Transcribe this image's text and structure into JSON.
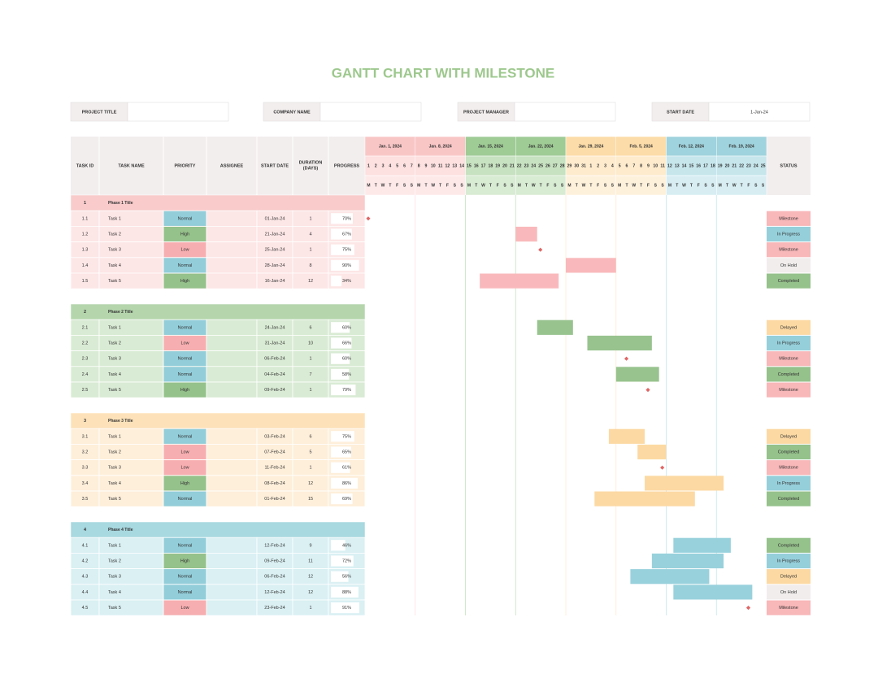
{
  "title": "GANTT CHART WITH MILESTONE",
  "info": [
    {
      "label": "PROJECT TITLE"
    },
    {
      "label": "COMPANY NAME"
    },
    {
      "label": "PROJECT MANAGER"
    },
    {
      "label": "START DATE",
      "value": "1-Jan-24"
    }
  ],
  "columns": [
    "TASK ID",
    "TASK NAME",
    "PRIORITY",
    "ASSIGNEE",
    "START DATE",
    "DURATION (DAYS)",
    "PROGRESS"
  ],
  "status_header": "STATUS",
  "timeline": {
    "weeks": [
      "Jan. 1, 2024",
      "Jan. 8, 2024",
      "Jan. 15, 2024",
      "Jan. 22, 2024",
      "Jan. 29, 2024",
      "Feb. 5, 2024",
      "Feb. 12, 2024",
      "Feb. 19, 2024"
    ],
    "week_colors": [
      "#f9c6c6",
      "#f9c6c6",
      "#9fcb95",
      "#9fcb95",
      "#fcdca8",
      "#fcdca8",
      "#9fd3dd",
      "#9fd3dd"
    ],
    "day_colors": [
      "#fde0e0",
      "#fde0e0",
      "#c7e2c0",
      "#c7e2c0",
      "#feebcd",
      "#feebcd",
      "#c6e6ec",
      "#c6e6ec"
    ],
    "days": [
      1,
      2,
      3,
      4,
      5,
      6,
      7,
      8,
      9,
      10,
      11,
      12,
      13,
      14,
      15,
      16,
      17,
      18,
      19,
      20,
      21,
      22,
      23,
      24,
      25,
      26,
      27,
      28,
      29,
      30,
      31,
      1,
      2,
      3,
      4,
      5,
      6,
      7,
      8,
      9,
      10,
      11,
      12,
      13,
      14,
      15,
      16,
      17,
      18,
      19,
      20,
      21,
      22,
      23,
      24,
      25
    ],
    "weekdays": [
      "M",
      "T",
      "W",
      "T",
      "F",
      "S",
      "S"
    ]
  },
  "priority_colors": {
    "Normal": "#92cdd9",
    "High": "#95c18b",
    "Low": "#f7aeb0"
  },
  "status_colors": {
    "Milestone": "#f8b7b8",
    "In Progress": "#95cfda",
    "On Hold": "#f1eded",
    "Completed": "#95c18b",
    "Delayed": "#fcd9a3"
  },
  "milestone_color": "#e06666",
  "phases": [
    {
      "id": "1",
      "title": "Phase 1 Title",
      "color": "#f9cbcb",
      "light": "#fde6e6",
      "bar": "#f9b9bc",
      "tasks": [
        {
          "id": "1.1",
          "name": "Task 1",
          "priority": "Normal",
          "start": "01-Jan-24",
          "duration": 1,
          "progress": "70%",
          "status": "Milestone"
        },
        {
          "id": "1.2",
          "name": "Task 2",
          "priority": "High",
          "start": "21-Jan-24",
          "duration": 4,
          "progress": "67%",
          "status": "In Progress"
        },
        {
          "id": "1.3",
          "name": "Task 3",
          "priority": "Low",
          "start": "25-Jan-24",
          "duration": 1,
          "progress": "75%",
          "status": "Milestone"
        },
        {
          "id": "1.4",
          "name": "Task 4",
          "priority": "Normal",
          "start": "28-Jan-24",
          "duration": 8,
          "progress": "90%",
          "status": "On Hold"
        },
        {
          "id": "1.5",
          "name": "Task 5",
          "priority": "High",
          "start": "16-Jan-24",
          "duration": 12,
          "progress": "34%",
          "status": "Completed"
        }
      ]
    },
    {
      "id": "2",
      "title": "Phase 2 Title",
      "color": "#b5d6ad",
      "light": "#d9ebd4",
      "bar": "#98c38e",
      "tasks": [
        {
          "id": "2.1",
          "name": "Task 1",
          "priority": "Normal",
          "start": "24-Jan-24",
          "duration": 6,
          "progress": "60%",
          "status": "Delayed"
        },
        {
          "id": "2.2",
          "name": "Task 2",
          "priority": "Low",
          "start": "31-Jan-24",
          "duration": 10,
          "progress": "66%",
          "status": "In Progress"
        },
        {
          "id": "2.3",
          "name": "Task 3",
          "priority": "Normal",
          "start": "06-Feb-24",
          "duration": 1,
          "progress": "60%",
          "status": "Milestone"
        },
        {
          "id": "2.4",
          "name": "Task 4",
          "priority": "Normal",
          "start": "04-Feb-24",
          "duration": 7,
          "progress": "58%",
          "status": "Completed"
        },
        {
          "id": "2.5",
          "name": "Task 5",
          "priority": "High",
          "start": "09-Feb-24",
          "duration": 1,
          "progress": "79%",
          "status": "Milestone"
        }
      ]
    },
    {
      "id": "3",
      "title": "Phase 3 Title",
      "color": "#fde2b9",
      "light": "#feefda",
      "bar": "#fcd9a3",
      "tasks": [
        {
          "id": "3.1",
          "name": "Task 1",
          "priority": "Normal",
          "start": "03-Feb-24",
          "duration": 6,
          "progress": "75%",
          "status": "Delayed"
        },
        {
          "id": "3.2",
          "name": "Task 2",
          "priority": "Low",
          "start": "07-Feb-24",
          "duration": 5,
          "progress": "65%",
          "status": "Completed"
        },
        {
          "id": "3.3",
          "name": "Task 3",
          "priority": "Low",
          "start": "11-Feb-24",
          "duration": 1,
          "progress": "61%",
          "status": "Milestone"
        },
        {
          "id": "3.4",
          "name": "Task 4",
          "priority": "High",
          "start": "08-Feb-24",
          "duration": 12,
          "progress": "86%",
          "status": "In Progress"
        },
        {
          "id": "3.5",
          "name": "Task 5",
          "priority": "Normal",
          "start": "01-Feb-24",
          "duration": 15,
          "progress": "69%",
          "status": "Completed"
        }
      ]
    },
    {
      "id": "4",
      "title": "Phase 4 Title",
      "color": "#a8d8e0",
      "light": "#daf0f3",
      "bar": "#98d1dc",
      "tasks": [
        {
          "id": "4.1",
          "name": "Task 1",
          "priority": "Normal",
          "start": "12-Feb-24",
          "duration": 9,
          "progress": "46%",
          "status": "Completed"
        },
        {
          "id": "4.2",
          "name": "Task 2",
          "priority": "High",
          "start": "09-Feb-24",
          "duration": 11,
          "progress": "72%",
          "status": "In Progress"
        },
        {
          "id": "4.3",
          "name": "Task 3",
          "priority": "Normal",
          "start": "06-Feb-24",
          "duration": 12,
          "progress": "56%",
          "status": "Delayed"
        },
        {
          "id": "4.4",
          "name": "Task 4",
          "priority": "Normal",
          "start": "12-Feb-24",
          "duration": 12,
          "progress": "88%",
          "status": "On Hold"
        },
        {
          "id": "4.5",
          "name": "Task 5",
          "priority": "Low",
          "start": "23-Feb-24",
          "duration": 1,
          "progress": "91%",
          "status": "Milestone"
        }
      ]
    }
  ]
}
